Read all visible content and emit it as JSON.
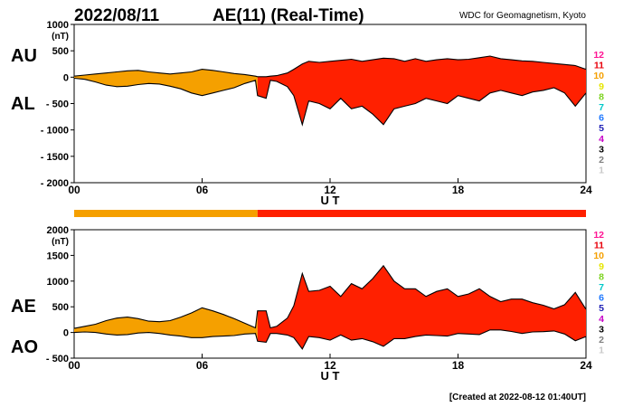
{
  "header": {
    "date": "2022/08/11",
    "title": "AE(11) (Real-Time)",
    "source": "WDC for Geomagnetism, Kyoto"
  },
  "footer": {
    "created": "[Created at 2022-08-12 01:40UT]"
  },
  "colors": {
    "orange": "#f5a000",
    "red": "#ff2000",
    "border": "#000000"
  },
  "station_count_scale": {
    "labels": [
      "12",
      "11",
      "10",
      "9",
      "8",
      "7",
      "6",
      "5",
      "4",
      "3",
      "2",
      "1"
    ],
    "colors": [
      "#ff1493",
      "#e8000b",
      "#f5a000",
      "#e6e600",
      "#7ed321",
      "#00c8c8",
      "#1e78ff",
      "#1c1cb4",
      "#c800c8",
      "#000000",
      "#7f7f7f",
      "#c8c8c8"
    ]
  },
  "chart_data": [
    {
      "type": "area",
      "panel": "AU/AL",
      "upper_label": "AU",
      "lower_label": "AL",
      "unit": "(nT)",
      "ylim": [
        -2000,
        1000
      ],
      "yticks": [
        "1000",
        "500",
        "0",
        "- 500",
        "- 1000",
        "- 1500",
        "- 2000"
      ],
      "ytick_values": [
        1000,
        500,
        0,
        -500,
        -1000,
        -1500,
        -2000
      ],
      "xlim": [
        0,
        24
      ],
      "xticks": [
        "00",
        "06",
        "12",
        "18",
        "24"
      ],
      "xtick_values": [
        0,
        6,
        12,
        18,
        24
      ],
      "xlabel": "U T",
      "x": [
        0,
        0.5,
        1,
        1.5,
        2,
        2.5,
        3,
        3.5,
        4,
        4.5,
        5,
        5.5,
        6,
        6.5,
        7,
        7.5,
        8,
        8.5,
        8.6,
        9,
        9.2,
        9.5,
        10,
        10.3,
        10.7,
        11,
        11.5,
        12,
        12.5,
        13,
        13.5,
        14,
        14.5,
        15,
        15.5,
        16,
        16.5,
        17,
        17.5,
        18,
        18.5,
        19,
        19.5,
        20,
        20.5,
        21,
        21.5,
        22,
        22.5,
        23,
        23.5,
        24
      ],
      "series": [
        {
          "name": "AU",
          "values": [
            20,
            40,
            60,
            80,
            100,
            120,
            130,
            100,
            80,
            60,
            80,
            100,
            150,
            130,
            100,
            70,
            50,
            20,
            10,
            10,
            20,
            30,
            80,
            150,
            250,
            300,
            280,
            300,
            320,
            340,
            300,
            330,
            360,
            350,
            300,
            350,
            300,
            330,
            350,
            330,
            340,
            370,
            400,
            350,
            330,
            310,
            300,
            280,
            260,
            240,
            220,
            150
          ]
        },
        {
          "name": "AL",
          "values": [
            -20,
            -40,
            -90,
            -150,
            -180,
            -170,
            -140,
            -120,
            -130,
            -170,
            -220,
            -300,
            -350,
            -300,
            -250,
            -200,
            -120,
            -60,
            -350,
            -400,
            -60,
            -80,
            -180,
            -350,
            -900,
            -450,
            -500,
            -600,
            -400,
            -600,
            -550,
            -700,
            -900,
            -600,
            -550,
            -500,
            -400,
            -450,
            -500,
            -350,
            -400,
            -450,
            -300,
            -250,
            -300,
            -350,
            -280,
            -250,
            -200,
            -300,
            -550,
            -300
          ]
        }
      ]
    },
    {
      "type": "area",
      "panel": "AE/AO",
      "upper_label": "AE",
      "lower_label": "AO",
      "unit": "(nT)",
      "ylim": [
        -500,
        2000
      ],
      "yticks": [
        "2000",
        "1500",
        "1000",
        "500",
        "0",
        "- 500"
      ],
      "ytick_values": [
        2000,
        1500,
        1000,
        500,
        0,
        -500
      ],
      "xlim": [
        0,
        24
      ],
      "xticks": [
        "00",
        "06",
        "12",
        "18",
        "24"
      ],
      "xtick_values": [
        0,
        6,
        12,
        18,
        24
      ],
      "xlabel": "U T",
      "x": [
        0,
        0.5,
        1,
        1.5,
        2,
        2.5,
        3,
        3.5,
        4,
        4.5,
        5,
        5.5,
        6,
        6.5,
        7,
        7.5,
        8,
        8.5,
        8.6,
        9,
        9.2,
        9.5,
        10,
        10.3,
        10.7,
        11,
        11.5,
        12,
        12.5,
        13,
        13.5,
        14,
        14.5,
        15,
        15.5,
        16,
        16.5,
        17,
        17.5,
        18,
        18.5,
        19,
        19.5,
        20,
        20.5,
        21,
        21.5,
        22,
        22.5,
        23,
        23.5,
        24
      ],
      "series": [
        {
          "name": "AE",
          "values": [
            80,
            120,
            160,
            230,
            280,
            300,
            270,
            220,
            210,
            230,
            300,
            380,
            480,
            420,
            350,
            270,
            180,
            90,
            420,
            420,
            90,
            120,
            280,
            520,
            1150,
            800,
            820,
            900,
            700,
            950,
            850,
            1050,
            1300,
            1000,
            850,
            850,
            700,
            800,
            850,
            700,
            750,
            850,
            700,
            600,
            650,
            650,
            580,
            530,
            460,
            540,
            780,
            450
          ]
        },
        {
          "name": "AO",
          "values": [
            0,
            10,
            0,
            -30,
            -50,
            -40,
            -10,
            0,
            -20,
            -50,
            -70,
            -100,
            -100,
            -80,
            -70,
            -60,
            -30,
            -20,
            -170,
            -190,
            -20,
            -20,
            -50,
            -100,
            -320,
            -80,
            -100,
            -150,
            -50,
            -150,
            -120,
            -180,
            -270,
            -120,
            -120,
            -80,
            -50,
            -60,
            -70,
            -20,
            -30,
            -40,
            50,
            50,
            20,
            -20,
            10,
            15,
            30,
            -30,
            -160,
            -80
          ]
        }
      ]
    }
  ],
  "station_bar": {
    "segments": [
      {
        "from": 0,
        "to": 8.6,
        "stations": "10"
      },
      {
        "from": 8.6,
        "to": 24,
        "stations": "11"
      }
    ]
  }
}
